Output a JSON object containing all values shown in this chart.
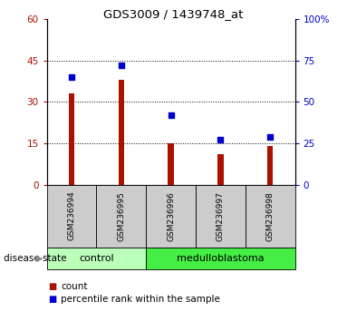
{
  "title": "GDS3009 / 1439748_at",
  "samples": [
    "GSM236994",
    "GSM236995",
    "GSM236996",
    "GSM236997",
    "GSM236998"
  ],
  "counts": [
    33,
    38,
    15,
    11,
    14
  ],
  "percentiles": [
    65,
    72,
    42,
    27,
    29
  ],
  "left_ylim": [
    0,
    60
  ],
  "right_ylim": [
    0,
    100
  ],
  "left_yticks": [
    0,
    15,
    30,
    45,
    60
  ],
  "right_yticks": [
    0,
    25,
    50,
    75,
    100
  ],
  "right_yticklabels": [
    "0",
    "25",
    "50",
    "75",
    "100%"
  ],
  "bar_color": "#aa1100",
  "dot_color": "#0000cc",
  "groups": [
    {
      "label": "control",
      "indices": [
        0,
        1
      ],
      "color": "#bbffbb"
    },
    {
      "label": "medulloblastoma",
      "indices": [
        2,
        3,
        4
      ],
      "color": "#44ee44"
    }
  ],
  "group_label_prefix": "disease state",
  "legend_count_label": "count",
  "legend_pct_label": "percentile rank within the sample",
  "tick_bg_color": "#cccccc",
  "plot_bg_color": "#ffffff",
  "bar_width": 0.12,
  "xlim": [
    -0.5,
    4.5
  ]
}
